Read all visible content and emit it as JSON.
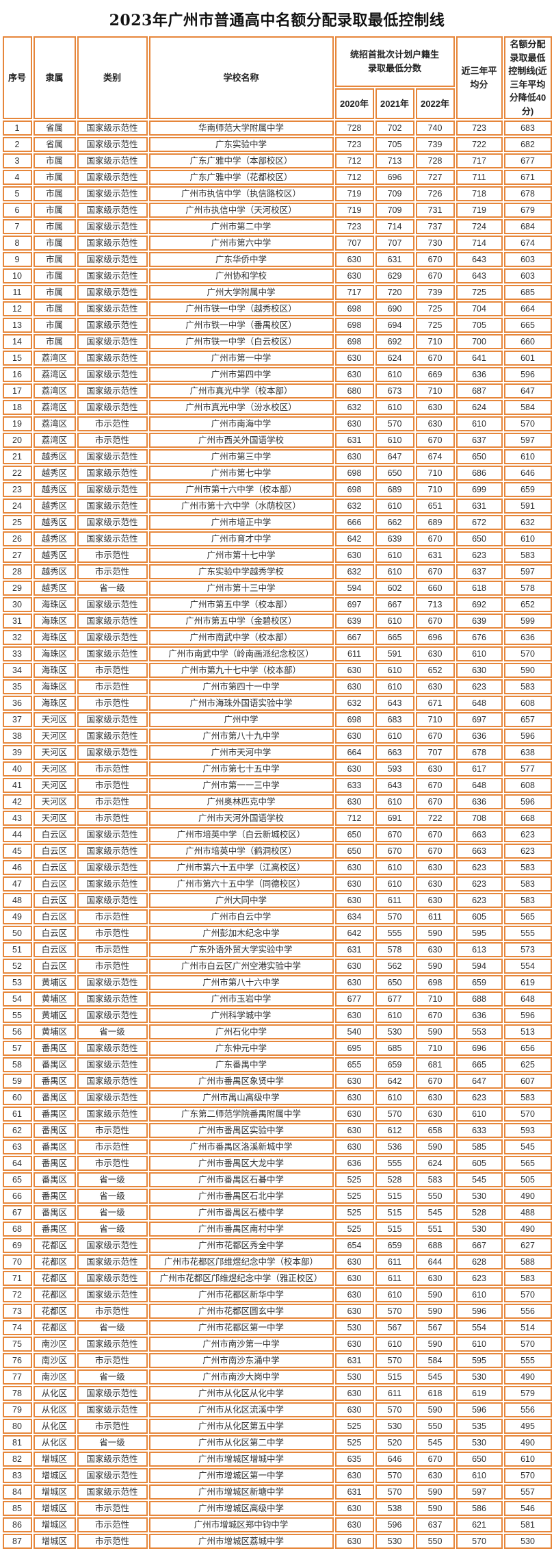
{
  "title": "2023年广州市普通高中名额分配录取最低控制线",
  "colors": {
    "table_border": "#e6863a",
    "title_text": "#111111",
    "cell_text": "#2f2f2f"
  },
  "table": {
    "headers": {
      "seq": "序号",
      "affiliation": "隶属",
      "category": "类别",
      "school": "学校名称",
      "score_group": "统招首批次计划户籍生录取最低分数",
      "year_2020": "2020年",
      "year_2021": "2021年",
      "year_2022": "2022年",
      "avg": "近三年平均分",
      "quota_line": "名额分配录取最低控制线(近三年平均分降低40分)"
    },
    "rows": [
      [
        1,
        "省属",
        "国家级示范性",
        "华南师范大学附属中学",
        728,
        702,
        740,
        723,
        683
      ],
      [
        2,
        "省属",
        "国家级示范性",
        "广东实验中学",
        723,
        705,
        739,
        722,
        682
      ],
      [
        3,
        "市属",
        "国家级示范性",
        "广东广雅中学（本部校区）",
        712,
        713,
        728,
        717,
        677
      ],
      [
        4,
        "市属",
        "国家级示范性",
        "广东广雅中学（花都校区）",
        712,
        696,
        727,
        711,
        671
      ],
      [
        5,
        "市属",
        "国家级示范性",
        "广州市执信中学（执信路校区）",
        719,
        709,
        726,
        718,
        678
      ],
      [
        6,
        "市属",
        "国家级示范性",
        "广州市执信中学（天河校区）",
        719,
        709,
        731,
        719,
        679
      ],
      [
        7,
        "市属",
        "国家级示范性",
        "广州市第二中学",
        723,
        714,
        737,
        724,
        684
      ],
      [
        8,
        "市属",
        "国家级示范性",
        "广州市第六中学",
        707,
        707,
        730,
        714,
        674
      ],
      [
        9,
        "市属",
        "国家级示范性",
        "广东华侨中学",
        630,
        631,
        670,
        643,
        603
      ],
      [
        10,
        "市属",
        "国家级示范性",
        "广州协和学校",
        630,
        629,
        670,
        643,
        603
      ],
      [
        11,
        "市属",
        "国家级示范性",
        "广州大学附属中学",
        717,
        720,
        739,
        725,
        685
      ],
      [
        12,
        "市属",
        "国家级示范性",
        "广州市铁一中学（越秀校区）",
        698,
        690,
        725,
        704,
        664
      ],
      [
        13,
        "市属",
        "国家级示范性",
        "广州市铁一中学（番禺校区）",
        698,
        694,
        725,
        705,
        665
      ],
      [
        14,
        "市属",
        "国家级示范性",
        "广州市铁一中学（白云校区）",
        698,
        692,
        710,
        700,
        660
      ],
      [
        15,
        "荔湾区",
        "国家级示范性",
        "广州市第一中学",
        630,
        624,
        670,
        641,
        601
      ],
      [
        16,
        "荔湾区",
        "国家级示范性",
        "广州市第四中学",
        630,
        610,
        669,
        636,
        596
      ],
      [
        17,
        "荔湾区",
        "国家级示范性",
        "广州市真光中学（校本部）",
        680,
        673,
        710,
        687,
        647
      ],
      [
        18,
        "荔湾区",
        "国家级示范性",
        "广州市真光中学（汾水校区）",
        632,
        610,
        630,
        624,
        584
      ],
      [
        19,
        "荔湾区",
        "市示范性",
        "广州市南海中学",
        630,
        570,
        630,
        610,
        570
      ],
      [
        20,
        "荔湾区",
        "市示范性",
        "广州市西关外国语学校",
        631,
        610,
        670,
        637,
        597
      ],
      [
        21,
        "越秀区",
        "国家级示范性",
        "广州市第三中学",
        630,
        647,
        674,
        650,
        610
      ],
      [
        22,
        "越秀区",
        "国家级示范性",
        "广州市第七中学",
        698,
        650,
        710,
        686,
        646
      ],
      [
        23,
        "越秀区",
        "国家级示范性",
        "广州市第十六中学（校本部）",
        698,
        689,
        710,
        699,
        659
      ],
      [
        24,
        "越秀区",
        "国家级示范性",
        "广州市第十六中学（水荫校区）",
        632,
        610,
        651,
        631,
        591
      ],
      [
        25,
        "越秀区",
        "国家级示范性",
        "广州市培正中学",
        666,
        662,
        689,
        672,
        632
      ],
      [
        26,
        "越秀区",
        "国家级示范性",
        "广州市育才中学",
        642,
        639,
        670,
        650,
        610
      ],
      [
        27,
        "越秀区",
        "市示范性",
        "广州市第十七中学",
        630,
        610,
        631,
        623,
        583
      ],
      [
        28,
        "越秀区",
        "市示范性",
        "广东实验中学越秀学校",
        632,
        610,
        670,
        637,
        597
      ],
      [
        29,
        "越秀区",
        "省一级",
        "广州市第十三中学",
        594,
        602,
        660,
        618,
        578
      ],
      [
        30,
        "海珠区",
        "国家级示范性",
        "广州市第五中学（校本部）",
        697,
        667,
        713,
        692,
        652
      ],
      [
        31,
        "海珠区",
        "国家级示范性",
        "广州市第五中学（金碧校区）",
        639,
        610,
        670,
        639,
        599
      ],
      [
        32,
        "海珠区",
        "国家级示范性",
        "广州市南武中学（校本部）",
        667,
        665,
        696,
        676,
        636
      ],
      [
        33,
        "海珠区",
        "国家级示范性",
        "广州市南武中学（岭南画派纪念校区）",
        611,
        591,
        630,
        610,
        570
      ],
      [
        34,
        "海珠区",
        "市示范性",
        "广州市第九十七中学（校本部）",
        630,
        610,
        652,
        630,
        590
      ],
      [
        35,
        "海珠区",
        "市示范性",
        "广州市第四十一中学",
        630,
        610,
        630,
        623,
        583
      ],
      [
        36,
        "海珠区",
        "市示范性",
        "广州市海珠外国语实验中学",
        632,
        643,
        671,
        648,
        608
      ],
      [
        37,
        "天河区",
        "国家级示范性",
        "广州中学",
        698,
        683,
        710,
        697,
        657
      ],
      [
        38,
        "天河区",
        "国家级示范性",
        "广州市第八十九中学",
        630,
        610,
        670,
        636,
        596
      ],
      [
        39,
        "天河区",
        "国家级示范性",
        "广州市天河中学",
        664,
        663,
        707,
        678,
        638
      ],
      [
        40,
        "天河区",
        "市示范性",
        "广州市第七十五中学",
        630,
        593,
        630,
        617,
        577
      ],
      [
        41,
        "天河区",
        "市示范性",
        "广州市第一一三中学",
        633,
        643,
        670,
        648,
        608
      ],
      [
        42,
        "天河区",
        "市示范性",
        "广州奥林匹克中学",
        630,
        610,
        670,
        636,
        596
      ],
      [
        43,
        "天河区",
        "市示范性",
        "广州市天河外国语学校",
        712,
        691,
        722,
        708,
        668
      ],
      [
        44,
        "白云区",
        "国家级示范性",
        "广州市培英中学（白云新城校区）",
        650,
        670,
        670,
        663,
        623
      ],
      [
        45,
        "白云区",
        "国家级示范性",
        "广州市培英中学（鹤洞校区）",
        650,
        670,
        670,
        663,
        623
      ],
      [
        46,
        "白云区",
        "国家级示范性",
        "广州市第六十五中学（江高校区）",
        630,
        610,
        630,
        623,
        583
      ],
      [
        47,
        "白云区",
        "国家级示范性",
        "广州市第六十五中学（同德校区）",
        630,
        610,
        630,
        623,
        583
      ],
      [
        48,
        "白云区",
        "国家级示范性",
        "广州大同中学",
        630,
        611,
        630,
        623,
        583
      ],
      [
        49,
        "白云区",
        "市示范性",
        "广州市白云中学",
        634,
        570,
        611,
        605,
        565
      ],
      [
        50,
        "白云区",
        "市示范性",
        "广州彭加木纪念中学",
        642,
        555,
        590,
        595,
        555
      ],
      [
        51,
        "白云区",
        "市示范性",
        "广东外语外贸大学实验中学",
        631,
        578,
        630,
        613,
        573
      ],
      [
        52,
        "白云区",
        "市示范性",
        "广州市白云区广州空港实验中学",
        630,
        562,
        590,
        594,
        554
      ],
      [
        53,
        "黄埔区",
        "国家级示范性",
        "广州市第八十六中学",
        630,
        650,
        698,
        659,
        619
      ],
      [
        54,
        "黄埔区",
        "国家级示范性",
        "广州市玉岩中学",
        677,
        677,
        710,
        688,
        648
      ],
      [
        55,
        "黄埔区",
        "国家级示范性",
        "广州科学城中学",
        630,
        610,
        670,
        636,
        596
      ],
      [
        56,
        "黄埔区",
        "省一级",
        "广州石化中学",
        540,
        530,
        590,
        553,
        513
      ],
      [
        57,
        "番禺区",
        "国家级示范性",
        "广东仲元中学",
        695,
        685,
        710,
        696,
        656
      ],
      [
        58,
        "番禺区",
        "国家级示范性",
        "广东番禺中学",
        655,
        659,
        681,
        665,
        625
      ],
      [
        59,
        "番禺区",
        "国家级示范性",
        "广州市番禺区象贤中学",
        630,
        642,
        670,
        647,
        607
      ],
      [
        60,
        "番禺区",
        "国家级示范性",
        "广州市禺山高级中学",
        630,
        610,
        630,
        623,
        583
      ],
      [
        61,
        "番禺区",
        "国家级示范性",
        "广东第二师范学院番禺附属中学",
        630,
        570,
        630,
        610,
        570
      ],
      [
        62,
        "番禺区",
        "市示范性",
        "广州市番禺区实验中学",
        630,
        612,
        658,
        633,
        593
      ],
      [
        63,
        "番禺区",
        "市示范性",
        "广州市番禺区洛溪新城中学",
        630,
        536,
        590,
        585,
        545
      ],
      [
        64,
        "番禺区",
        "市示范性",
        "广州市番禺区大龙中学",
        636,
        555,
        624,
        605,
        565
      ],
      [
        65,
        "番禺区",
        "省一级",
        "广州市番禺区石碁中学",
        525,
        528,
        583,
        545,
        505
      ],
      [
        66,
        "番禺区",
        "省一级",
        "广州市番禺区石北中学",
        525,
        515,
        550,
        530,
        490
      ],
      [
        67,
        "番禺区",
        "省一级",
        "广州市番禺区石楼中学",
        525,
        515,
        545,
        528,
        488
      ],
      [
        68,
        "番禺区",
        "省一级",
        "广州市番禺区南村中学",
        525,
        515,
        551,
        530,
        490
      ],
      [
        69,
        "花都区",
        "国家级示范性",
        "广州市花都区秀全中学",
        654,
        659,
        688,
        667,
        627
      ],
      [
        70,
        "花都区",
        "国家级示范性",
        "广州市花都区邝维煜纪念中学（校本部）",
        630,
        611,
        644,
        628,
        588
      ],
      [
        71,
        "花都区",
        "国家级示范性",
        "广州市花都区邝维煜纪念中学（雅正校区）",
        630,
        611,
        630,
        623,
        583
      ],
      [
        72,
        "花都区",
        "国家级示范性",
        "广州市花都区新华中学",
        630,
        610,
        590,
        610,
        570
      ],
      [
        73,
        "花都区",
        "市示范性",
        "广州市花都区圆玄中学",
        630,
        570,
        590,
        596,
        556
      ],
      [
        74,
        "花都区",
        "省一级",
        "广州市花都区第一中学",
        530,
        567,
        567,
        554,
        514
      ],
      [
        75,
        "南沙区",
        "国家级示范性",
        "广州市南沙第一中学",
        630,
        610,
        590,
        610,
        570
      ],
      [
        76,
        "南沙区",
        "市示范性",
        "广州市南沙东涌中学",
        631,
        570,
        584,
        595,
        555
      ],
      [
        77,
        "南沙区",
        "省一级",
        "广州市南沙大岗中学",
        530,
        515,
        545,
        530,
        490
      ],
      [
        78,
        "从化区",
        "国家级示范性",
        "广州市从化区从化中学",
        630,
        611,
        618,
        619,
        579
      ],
      [
        79,
        "从化区",
        "国家级示范性",
        "广州市从化区流溪中学",
        630,
        570,
        590,
        596,
        556
      ],
      [
        80,
        "从化区",
        "市示范性",
        "广州市从化区第五中学",
        525,
        530,
        550,
        535,
        495
      ],
      [
        81,
        "从化区",
        "省一级",
        "广州市从化区第二中学",
        525,
        520,
        545,
        530,
        490
      ],
      [
        82,
        "增城区",
        "国家级示范性",
        "广州市增城区增城中学",
        635,
        646,
        670,
        650,
        610
      ],
      [
        83,
        "增城区",
        "国家级示范性",
        "广州市增城区第一中学",
        630,
        570,
        630,
        610,
        570
      ],
      [
        84,
        "增城区",
        "国家级示范性",
        "广州市增城区新塘中学",
        631,
        570,
        590,
        597,
        557
      ],
      [
        85,
        "增城区",
        "市示范性",
        "广州市增城区高级中学",
        630,
        538,
        590,
        586,
        546
      ],
      [
        86,
        "增城区",
        "市示范性",
        "广州市增城区郑中钧中学",
        630,
        596,
        637,
        621,
        581
      ],
      [
        87,
        "增城区",
        "市示范性",
        "广州市增城区荔城中学",
        630,
        530,
        550,
        570,
        530
      ]
    ]
  }
}
